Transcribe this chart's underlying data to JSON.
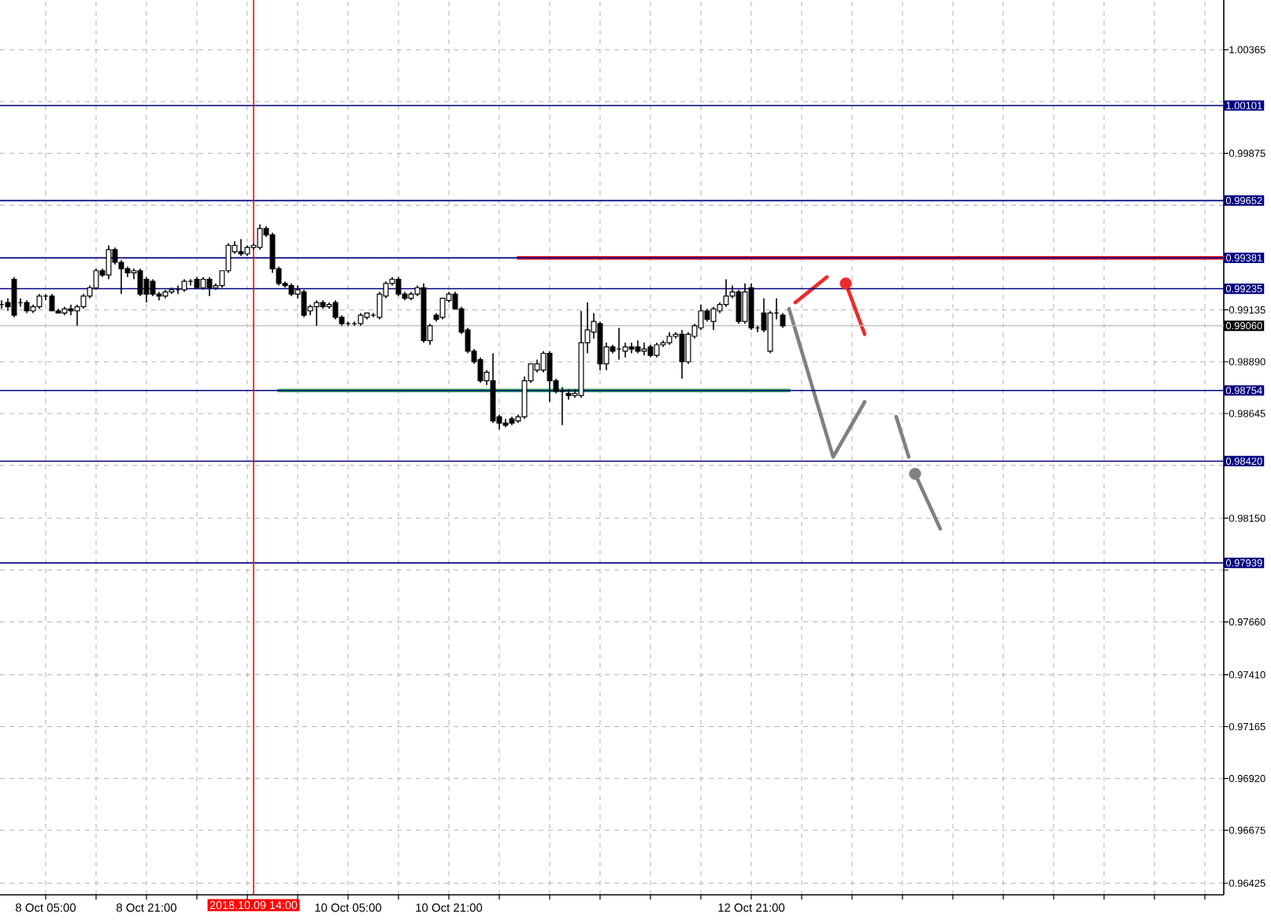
{
  "chart_data": {
    "type": "candlestick",
    "x": [
      "2018-10-07T22:00",
      "2018-10-07T23:00",
      "2018-10-08T00:00",
      "2018-10-08T01:00",
      "2018-10-08T02:00",
      "2018-10-08T03:00",
      "2018-10-08T04:00",
      "2018-10-08T05:00",
      "2018-10-08T06:00",
      "2018-10-08T07:00",
      "2018-10-08T08:00",
      "2018-10-08T09:00",
      "2018-10-08T10:00",
      "2018-10-08T11:00",
      "2018-10-08T12:00",
      "2018-10-08T13:00",
      "2018-10-08T14:00",
      "2018-10-08T15:00",
      "2018-10-08T16:00",
      "2018-10-08T17:00",
      "2018-10-08T18:00",
      "2018-10-08T19:00",
      "2018-10-08T20:00",
      "2018-10-08T21:00",
      "2018-10-08T22:00",
      "2018-10-08T23:00",
      "2018-10-09T00:00",
      "2018-10-09T01:00",
      "2018-10-09T02:00",
      "2018-10-09T03:00",
      "2018-10-09T04:00",
      "2018-10-09T05:00",
      "2018-10-09T06:00",
      "2018-10-09T07:00",
      "2018-10-09T08:00",
      "2018-10-09T09:00",
      "2018-10-09T10:00",
      "2018-10-09T11:00",
      "2018-10-09T12:00",
      "2018-10-09T13:00",
      "2018-10-09T14:00",
      "2018-10-09T15:00",
      "2018-10-09T16:00",
      "2018-10-09T17:00",
      "2018-10-09T18:00",
      "2018-10-09T19:00",
      "2018-10-09T20:00",
      "2018-10-09T21:00",
      "2018-10-09T22:00",
      "2018-10-09T23:00",
      "2018-10-10T00:00",
      "2018-10-10T01:00",
      "2018-10-10T02:00",
      "2018-10-10T03:00",
      "2018-10-10T04:00",
      "2018-10-10T05:00",
      "2018-10-10T06:00",
      "2018-10-10T07:00",
      "2018-10-10T08:00",
      "2018-10-10T09:00",
      "2018-10-10T10:00",
      "2018-10-10T11:00",
      "2018-10-10T12:00",
      "2018-10-10T13:00",
      "2018-10-10T14:00",
      "2018-10-10T15:00",
      "2018-10-10T16:00",
      "2018-10-10T17:00",
      "2018-10-10T18:00",
      "2018-10-10T19:00",
      "2018-10-10T20:00",
      "2018-10-10T21:00",
      "2018-10-10T22:00",
      "2018-10-10T23:00",
      "2018-10-11T00:00",
      "2018-10-11T01:00",
      "2018-10-11T02:00",
      "2018-10-11T03:00",
      "2018-10-11T04:00",
      "2018-10-11T05:00",
      "2018-10-11T06:00",
      "2018-10-11T07:00",
      "2018-10-11T08:00",
      "2018-10-11T09:00",
      "2018-10-11T10:00",
      "2018-10-11T11:00",
      "2018-10-11T12:00",
      "2018-10-11T13:00",
      "2018-10-11T14:00",
      "2018-10-11T15:00",
      "2018-10-11T16:00",
      "2018-10-11T17:00",
      "2018-10-11T18:00",
      "2018-10-11T19:00",
      "2018-10-11T20:00",
      "2018-10-11T21:00",
      "2018-10-11T22:00",
      "2018-10-11T23:00",
      "2018-10-12T00:00",
      "2018-10-12T01:00",
      "2018-10-12T02:00",
      "2018-10-12T03:00",
      "2018-10-12T04:00",
      "2018-10-12T05:00",
      "2018-10-12T06:00",
      "2018-10-12T07:00",
      "2018-10-12T08:00",
      "2018-10-12T09:00",
      "2018-10-12T10:00",
      "2018-10-12T11:00",
      "2018-10-12T12:00",
      "2018-10-12T13:00",
      "2018-10-12T14:00",
      "2018-10-12T15:00",
      "2018-10-12T16:00",
      "2018-10-12T17:00",
      "2018-10-12T18:00",
      "2018-10-12T19:00",
      "2018-10-12T20:00",
      "2018-10-12T21:00",
      "2018-10-12T22:00",
      "2018-10-12T23:00",
      "2018-10-13T00:00",
      "2018-10-13T01:00",
      "2018-10-13T02:00"
    ],
    "ohlc": [
      [
        0.9916,
        0.9918,
        0.9914,
        0.9916
      ],
      [
        0.9917,
        0.9919,
        0.9913,
        0.9915
      ],
      [
        0.9928,
        0.9929,
        0.991,
        0.9911
      ],
      [
        0.9917,
        0.9919,
        0.9915,
        0.9917
      ],
      [
        0.9917,
        0.9918,
        0.9912,
        0.9913
      ],
      [
        0.9913,
        0.9916,
        0.9912,
        0.9915
      ],
      [
        0.9915,
        0.9921,
        0.9914,
        0.992
      ],
      [
        0.992,
        0.9921,
        0.9918,
        0.992
      ],
      [
        0.992,
        0.9921,
        0.9913,
        0.9913
      ],
      [
        0.9913,
        0.9914,
        0.9912,
        0.9912
      ],
      [
        0.9912,
        0.9915,
        0.9911,
        0.9914
      ],
      [
        0.9914,
        0.9916,
        0.9911,
        0.9913
      ],
      [
        0.9913,
        0.9916,
        0.9906,
        0.9915
      ],
      [
        0.9915,
        0.9921,
        0.9914,
        0.992
      ],
      [
        0.992,
        0.9925,
        0.9919,
        0.9924
      ],
      [
        0.9924,
        0.9933,
        0.9923,
        0.9932
      ],
      [
        0.9932,
        0.9933,
        0.9929,
        0.993
      ],
      [
        0.993,
        0.9944,
        0.9928,
        0.9942
      ],
      [
        0.9942,
        0.9943,
        0.9935,
        0.9936
      ],
      [
        0.9936,
        0.9937,
        0.9921,
        0.9933
      ],
      [
        0.9933,
        0.9934,
        0.9929,
        0.9931
      ],
      [
        0.9931,
        0.9933,
        0.9928,
        0.9932
      ],
      [
        0.9932,
        0.9933,
        0.992,
        0.9921
      ],
      [
        0.9928,
        0.9929,
        0.9917,
        0.9921
      ],
      [
        0.9927,
        0.9928,
        0.992,
        0.9921
      ],
      [
        0.9921,
        0.9922,
        0.9918,
        0.992
      ],
      [
        0.992,
        0.9923,
        0.9919,
        0.9922
      ],
      [
        0.9922,
        0.9924,
        0.9921,
        0.9923
      ],
      [
        0.9923,
        0.9925,
        0.9921,
        0.9923
      ],
      [
        0.9923,
        0.9928,
        0.9922,
        0.9927
      ],
      [
        0.9927,
        0.9928,
        0.9925,
        0.9927
      ],
      [
        0.9928,
        0.9929,
        0.9924,
        0.9924
      ],
      [
        0.9924,
        0.9929,
        0.9923,
        0.9928
      ],
      [
        0.9928,
        0.9929,
        0.992,
        0.9924
      ],
      [
        0.9924,
        0.9926,
        0.9923,
        0.9925
      ],
      [
        0.9925,
        0.9932,
        0.9924,
        0.9932
      ],
      [
        0.9932,
        0.9945,
        0.9931,
        0.9944
      ],
      [
        0.9941,
        0.9946,
        0.994,
        0.9944
      ],
      [
        0.9941,
        0.9947,
        0.9939,
        0.994
      ],
      [
        0.994,
        0.9944,
        0.9939,
        0.9943
      ],
      [
        0.9943,
        0.9945,
        0.9942,
        0.9944
      ],
      [
        0.9943,
        0.9954,
        0.9942,
        0.9952
      ],
      [
        0.9952,
        0.9953,
        0.9948,
        0.9949
      ],
      [
        0.9949,
        0.995,
        0.9931,
        0.9933
      ],
      [
        0.9933,
        0.9934,
        0.9925,
        0.9926
      ],
      [
        0.9926,
        0.9927,
        0.9924,
        0.9925
      ],
      [
        0.9925,
        0.9926,
        0.992,
        0.9921
      ],
      [
        0.9921,
        0.9925,
        0.9919,
        0.9923
      ],
      [
        0.9922,
        0.9923,
        0.991,
        0.9911
      ],
      [
        0.9913,
        0.9916,
        0.9911,
        0.9915
      ],
      [
        0.9915,
        0.9918,
        0.9906,
        0.9917
      ],
      [
        0.9917,
        0.9918,
        0.9914,
        0.9915
      ],
      [
        0.9915,
        0.9917,
        0.9914,
        0.9916
      ],
      [
        0.9917,
        0.9918,
        0.9909,
        0.991
      ],
      [
        0.991,
        0.9911,
        0.9906,
        0.9907
      ],
      [
        0.9907,
        0.9908,
        0.9906,
        0.9907
      ],
      [
        0.9907,
        0.9908,
        0.9906,
        0.9907
      ],
      [
        0.9907,
        0.9912,
        0.9906,
        0.9911
      ],
      [
        0.991,
        0.9912,
        0.9909,
        0.9912
      ],
      [
        0.9911,
        0.9912,
        0.991,
        0.9911
      ],
      [
        0.991,
        0.9922,
        0.9909,
        0.9921
      ],
      [
        0.992,
        0.9927,
        0.9919,
        0.9926
      ],
      [
        0.9926,
        0.9929,
        0.9925,
        0.9928
      ],
      [
        0.9928,
        0.9929,
        0.992,
        0.9921
      ],
      [
        0.9921,
        0.9922,
        0.9918,
        0.9919
      ],
      [
        0.9919,
        0.9922,
        0.9918,
        0.9921
      ],
      [
        0.9921,
        0.9925,
        0.992,
        0.9924
      ],
      [
        0.9924,
        0.9926,
        0.9898,
        0.9899
      ],
      [
        0.9899,
        0.9907,
        0.9897,
        0.9906
      ],
      [
        0.9911,
        0.9912,
        0.9908,
        0.9909
      ],
      [
        0.991,
        0.9919,
        0.9909,
        0.9919
      ],
      [
        0.9918,
        0.9922,
        0.9917,
        0.9921
      ],
      [
        0.9921,
        0.9922,
        0.9914,
        0.9914
      ],
      [
        0.9914,
        0.9915,
        0.9902,
        0.9903
      ],
      [
        0.9904,
        0.9905,
        0.9893,
        0.9894
      ],
      [
        0.9894,
        0.9895,
        0.9888,
        0.9889
      ],
      [
        0.989,
        0.9891,
        0.9879,
        0.988
      ],
      [
        0.988,
        0.9885,
        0.9878,
        0.9884
      ],
      [
        0.988,
        0.9893,
        0.986,
        0.9861
      ],
      [
        0.9863,
        0.9864,
        0.9857,
        0.986
      ],
      [
        0.986,
        0.9862,
        0.9858,
        0.9859
      ],
      [
        0.9862,
        0.9863,
        0.9859,
        0.986
      ],
      [
        0.9861,
        0.9864,
        0.986,
        0.9863
      ],
      [
        0.9863,
        0.9882,
        0.9862,
        0.988
      ],
      [
        0.988,
        0.9888,
        0.9879,
        0.9888
      ],
      [
        0.9885,
        0.989,
        0.9884,
        0.9888
      ],
      [
        0.9885,
        0.9894,
        0.9884,
        0.9893
      ],
      [
        0.9893,
        0.9894,
        0.987,
        0.988
      ],
      [
        0.988,
        0.9881,
        0.9874,
        0.9875
      ],
      [
        0.9875,
        0.9877,
        0.9859,
        0.9875
      ],
      [
        0.9874,
        0.9876,
        0.9871,
        0.9873
      ],
      [
        0.9873,
        0.9876,
        0.9872,
        0.9874
      ],
      [
        0.9873,
        0.9913,
        0.9872,
        0.9898
      ],
      [
        0.9898,
        0.9917,
        0.9893,
        0.9904
      ],
      [
        0.9903,
        0.9912,
        0.99,
        0.9908
      ],
      [
        0.9907,
        0.9908,
        0.9885,
        0.9888
      ],
      [
        0.9888,
        0.9898,
        0.9885,
        0.9896
      ],
      [
        0.9896,
        0.9897,
        0.9893,
        0.9894
      ],
      [
        0.9895,
        0.9905,
        0.989,
        0.9895
      ],
      [
        0.9894,
        0.9898,
        0.9891,
        0.9896
      ],
      [
        0.9896,
        0.9898,
        0.9893,
        0.9895
      ],
      [
        0.9896,
        0.9899,
        0.9893,
        0.9894
      ],
      [
        0.9894,
        0.9898,
        0.9892,
        0.9895
      ],
      [
        0.9896,
        0.9897,
        0.9891,
        0.9892
      ],
      [
        0.9892,
        0.9898,
        0.9891,
        0.9897
      ],
      [
        0.9897,
        0.9899,
        0.9896,
        0.9898
      ],
      [
        0.9898,
        0.9903,
        0.9897,
        0.9901
      ],
      [
        0.9901,
        0.9903,
        0.99,
        0.9902
      ],
      [
        0.9902,
        0.9904,
        0.9881,
        0.9889
      ],
      [
        0.9889,
        0.9903,
        0.9888,
        0.9902
      ],
      [
        0.9901,
        0.9907,
        0.99,
        0.9906
      ],
      [
        0.9905,
        0.9916,
        0.9904,
        0.9913
      ],
      [
        0.9913,
        0.9914,
        0.9908,
        0.9909
      ],
      [
        0.9908,
        0.9915,
        0.9904,
        0.9914
      ],
      [
        0.9913,
        0.9917,
        0.9912,
        0.9916
      ],
      [
        0.9916,
        0.9928,
        0.9915,
        0.992
      ],
      [
        0.992,
        0.9925,
        0.9919,
        0.9922
      ],
      [
        0.9922,
        0.9923,
        0.9907,
        0.9908
      ],
      [
        0.9908,
        0.9926,
        0.9907,
        0.9922
      ],
      [
        0.9924,
        0.9926,
        0.9904,
        0.9905
      ],
      [
        0.9905,
        0.9906,
        0.9903,
        0.9905
      ],
      [
        0.9912,
        0.9919,
        0.9903,
        0.9904
      ],
      [
        0.9894,
        0.9913,
        0.9893,
        0.9912
      ],
      [
        0.9912,
        0.9919,
        0.9909,
        0.9912
      ],
      [
        0.9911,
        0.9912,
        0.9905,
        0.9906
      ]
    ],
    "xlim": [
      "2018-10-07T21:45",
      "2018-10-16T00:00"
    ],
    "xticks": [
      {
        "value": "2018-10-08T05:00",
        "label": "8 Oct 05:00"
      },
      {
        "value": "2018-10-08T13:00",
        "label": null
      },
      {
        "value": "2018-10-08T21:00",
        "label": "8 Oct 21:00"
      },
      {
        "value": "2018-10-09T05:00",
        "label": null
      },
      {
        "value": "2018-10-09T13:00",
        "label": null
      },
      {
        "value": "2018-10-09T21:00",
        "label": null
      },
      {
        "value": "2018-10-10T05:00",
        "label": "10 Oct 05:00"
      },
      {
        "value": "2018-10-10T13:00",
        "label": null
      },
      {
        "value": "2018-10-10T21:00",
        "label": "10 Oct 21:00"
      },
      {
        "value": "2018-10-11T05:00",
        "label": null
      },
      {
        "value": "2018-10-11T13:00",
        "label": null
      },
      {
        "value": "2018-10-11T21:00",
        "label": null
      },
      {
        "value": "2018-10-12T05:00",
        "label": null
      },
      {
        "value": "2018-10-12T13:00",
        "label": null
      },
      {
        "value": "2018-10-12T21:00",
        "label": "12 Oct 21:00"
      },
      {
        "value": "2018-10-13T05:00",
        "label": null
      },
      {
        "value": "2018-10-13T13:00",
        "label": null
      },
      {
        "value": "2018-10-13T21:00",
        "label": null
      },
      {
        "value": "2018-10-14T05:00",
        "label": null
      },
      {
        "value": "2018-10-14T13:00",
        "label": null
      },
      {
        "value": "2018-10-14T21:00",
        "label": null
      },
      {
        "value": "2018-10-15T05:00",
        "label": null
      },
      {
        "value": "2018-10-15T13:00",
        "label": null
      },
      {
        "value": "2018-10-15T21:00",
        "label": null
      }
    ],
    "ylim": [
      0.9637,
      1.006
    ],
    "yticks": [
      1.00365,
      {
        "value": 1.0012,
        "label": null
      },
      0.99875,
      {
        "value": 0.9963,
        "label": null
      },
      {
        "value": 0.9938,
        "label": null
      },
      0.99135,
      {
        "value": 0.9889,
        "label": "0.98890"
      },
      0.98645,
      {
        "value": 0.984,
        "label": null
      },
      {
        "value": 0.9815,
        "label": "0.98150"
      },
      {
        "value": 0.97905,
        "label": null
      },
      {
        "value": 0.9766,
        "label": "0.97660"
      },
      {
        "value": 0.9741,
        "label": "0.97410"
      },
      0.97165,
      {
        "value": 0.9692,
        "label": "0.96920"
      },
      0.96675,
      0.96425
    ],
    "grid": true,
    "ref_lines": [
      {
        "axis": "y",
        "value": 1.00101,
        "label": "1.00101",
        "color": "#000080"
      },
      {
        "axis": "y",
        "value": 0.99652,
        "label": "0.99652",
        "color": "#000080"
      },
      {
        "axis": "y",
        "value": 0.99381,
        "label": "0.99381",
        "color": "#000080"
      },
      {
        "axis": "y",
        "value": 0.99235,
        "label": "0.99235",
        "color": "#000080"
      },
      {
        "axis": "y",
        "value": 0.9906,
        "label": "0.99060",
        "color": "#c0c0c0"
      },
      {
        "axis": "y",
        "value": 0.98754,
        "label": "0.98754",
        "color": "#000080"
      },
      {
        "axis": "y",
        "value": 0.9842,
        "label": "0.98420",
        "color": "#000080"
      },
      {
        "axis": "y",
        "value": 0.97939,
        "label": "0.97939",
        "color": "#000080"
      },
      {
        "axis": "x",
        "value": "2018-10-09T14:00",
        "label": "2018.10.09 14:00",
        "color": "#ff0000"
      }
    ],
    "series": [
      {
        "type": "line",
        "color": "#ee2a2a",
        "x": [
          "2018-10-11T08:00",
          "2018-10-16T00:00"
        ],
        "values": [
          0.99381,
          0.99381
        ]
      },
      {
        "type": "line",
        "color": "#2eaa5e",
        "x": [
          "2018-10-09T18:00",
          "2018-10-13T03:00"
        ],
        "values": [
          0.98754,
          0.98754
        ]
      },
      {
        "type": "line",
        "color": "#ee2a2a",
        "x": [
          "2018-10-13T04:00",
          "2018-10-13T09:00"
        ],
        "values": [
          0.9917,
          0.9929
        ]
      },
      {
        "type": "line",
        "color": "#ee2a2a",
        "x": [
          "2018-10-13T12:00",
          "2018-10-13T15:00"
        ],
        "values": [
          0.9926,
          0.9902
        ]
      },
      {
        "type": "scatter",
        "marker": "circle",
        "color": "#ee2a2a",
        "x": [
          "2018-10-13T12:00"
        ],
        "values": [
          0.9926
        ]
      },
      {
        "type": "line",
        "color": "#808080",
        "x": [
          "2018-10-13T03:00",
          "2018-10-13T10:00",
          "2018-10-13T15:00"
        ],
        "values": [
          0.9914,
          0.9844,
          0.987
        ]
      },
      {
        "type": "line",
        "color": "#808080",
        "x": [
          "2018-10-13T20:00",
          "2018-10-13T22:00"
        ],
        "values": [
          0.9863,
          0.9844
        ]
      },
      {
        "type": "line",
        "color": "#808080",
        "x": [
          "2018-10-13T23:00",
          "2018-10-14T03:00"
        ],
        "values": [
          0.9836,
          0.981
        ]
      },
      {
        "type": "scatter",
        "marker": "circle",
        "color": "#808080",
        "x": [
          "2018-10-13T23:00"
        ],
        "values": [
          0.9836
        ]
      }
    ]
  }
}
